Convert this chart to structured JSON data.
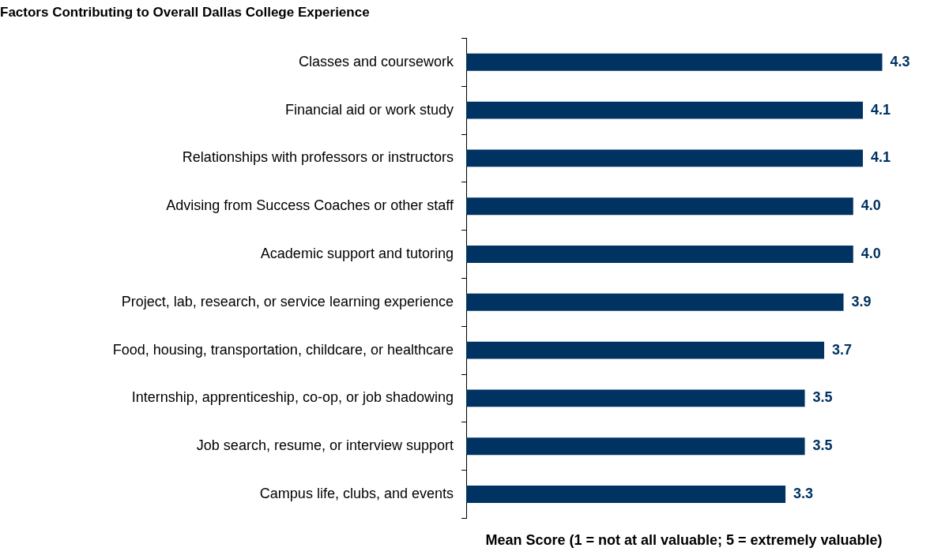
{
  "chart_data": {
    "type": "bar",
    "orientation": "horizontal",
    "title": "Factors Contributing to Overall Dallas College Experience",
    "xlabel": "Mean Score (1 = not at all valuable; 5 = extremely valuable)",
    "categories": [
      "Classes and coursework",
      "Financial aid or work study",
      "Relationships with professors or instructors",
      "Advising from Success Coaches or other staff",
      "Academic support and tutoring",
      "Project, lab, research, or service learning experience",
      "Food, housing, transportation, childcare, or healthcare",
      "Internship, apprenticeship, co-op, or job shadowing",
      "Job search, resume, or interview support",
      "Campus life, clubs, and events"
    ],
    "values": [
      4.3,
      4.1,
      4.1,
      4.0,
      4.0,
      3.9,
      3.7,
      3.5,
      3.5,
      3.3
    ],
    "value_labels": [
      "4.3",
      "4.1",
      "4.1",
      "4.0",
      "4.0",
      "3.9",
      "3.7",
      "3.5",
      "3.5",
      "3.3"
    ],
    "color": "#003361",
    "tick_labels": "y",
    "grid": false,
    "legend": false
  }
}
